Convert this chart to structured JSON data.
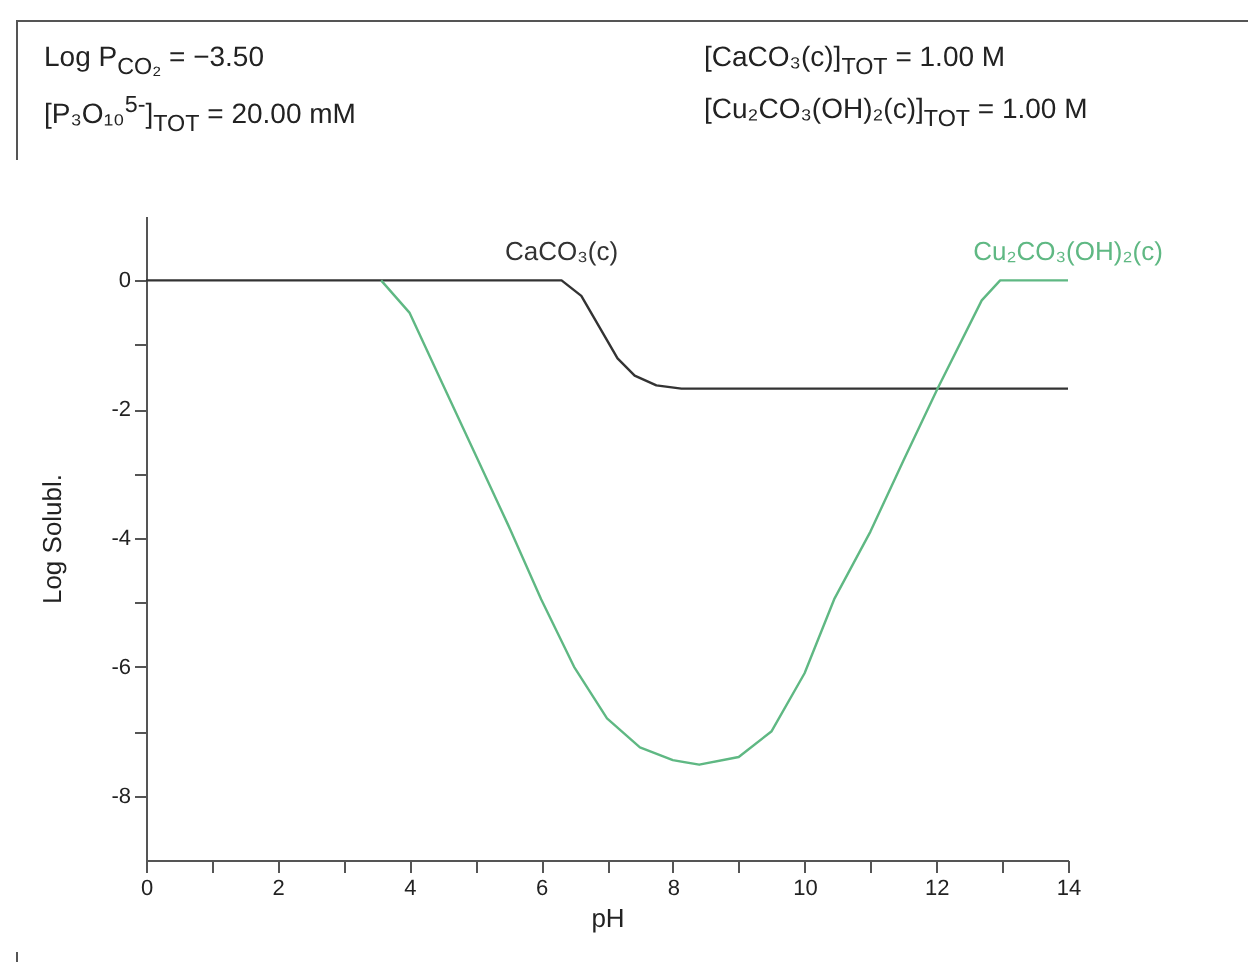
{
  "chart_data": {
    "type": "line",
    "xlabel": "pH",
    "ylabel": "Log Solubl.",
    "annotations": [
      "Log P$_{CO₂}$ = −3.50",
      "[CaCO₃(c)]$_{TOT}$ = 1.00 M",
      "[P₃O₁₀$^{5-}$]$_{TOT}$ = 20.00 mM",
      "[Cu₂CO₃(OH)₂(c)]$_{TOT}$ = 1.00 M"
    ],
    "series": [
      {
        "name": "CaCO₃(c)",
        "color": "#333333",
        "x": [
          0,
          6.31,
          6.61,
          7.16,
          7.42,
          7.75,
          8.13,
          14
        ],
        "values": [
          0,
          0,
          -0.24,
          -1.21,
          -1.48,
          -1.63,
          -1.68,
          -1.68
        ]
      },
      {
        "name": "Cu₂CO₃(OH)₂(c)",
        "color": "#5fb883",
        "x": [
          3.57,
          4,
          4.5,
          5,
          5.5,
          6,
          6.5,
          7,
          7.5,
          8,
          8.4,
          9,
          9.5,
          10,
          10.45,
          11,
          11.5,
          12.02,
          12.69,
          12.97,
          14
        ],
        "values": [
          0,
          -0.5,
          -1.6,
          -2.7,
          -3.8,
          -4.95,
          -6.0,
          -6.8,
          -7.25,
          -7.45,
          -7.52,
          -7.4,
          -7.0,
          -6.1,
          -4.95,
          -3.9,
          -2.8,
          -1.68,
          -0.31,
          0,
          0
        ]
      }
    ],
    "xlim": [
      0,
      14
    ],
    "ylim": [
      -9,
      1
    ],
    "xticks": [
      0,
      {
        "value": 1,
        "label": null
      },
      2,
      {
        "value": 3,
        "label": null
      },
      4,
      {
        "value": 5,
        "label": null
      },
      6,
      {
        "value": 7,
        "label": null
      },
      8,
      {
        "value": 9,
        "label": null
      },
      10,
      {
        "value": 11,
        "label": null
      },
      12,
      {
        "value": 13,
        "label": null
      },
      14
    ],
    "yticks": [
      -8,
      {
        "value": -7,
        "label": null
      },
      -6,
      {
        "value": -5,
        "label": null
      },
      -4,
      {
        "value": -3,
        "label": null
      },
      -2,
      {
        "value": -1,
        "label": null
      },
      0
    ],
    "grid": false,
    "legend": false,
    "marker": "none",
    "line_style": "solid"
  }
}
